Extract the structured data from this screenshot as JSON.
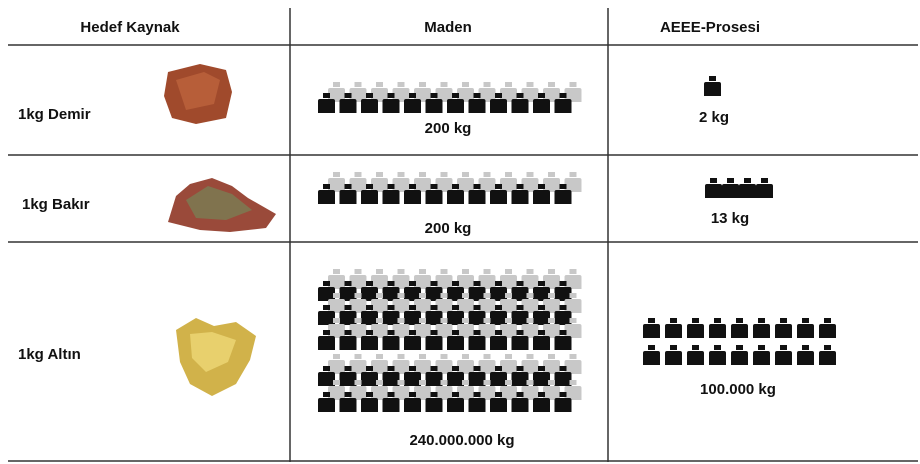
{
  "header": {
    "columns": [
      "Hedef Kaynak",
      "Maden",
      "AEEE-Prosesi"
    ]
  },
  "rows": [
    {
      "label": "1kg Demir",
      "maden": "200 kg",
      "aeee": "2 kg"
    },
    {
      "label": "1kg Bakır",
      "maden": "200 kg",
      "aeee": "13 kg"
    },
    {
      "label": "1kg Altın",
      "maden": "240.000.000 kg",
      "aeee": "100.000 kg"
    }
  ]
}
